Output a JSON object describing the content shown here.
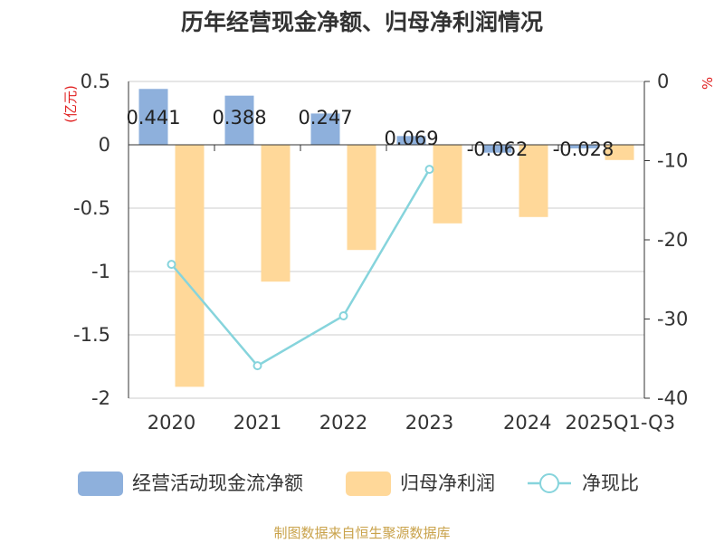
{
  "chart_data": {
    "type": "bar",
    "title": "历年经营现金净额、归母净利润情况",
    "categories": [
      "2020",
      "2021",
      "2022",
      "2023",
      "2024",
      "2025Q1-Q3"
    ],
    "left_unit": "(亿元)",
    "right_unit": "%",
    "left_axis": {
      "min": -2,
      "max": 0.5,
      "ticks": [
        "0.5",
        "0",
        "-0.5",
        "-1",
        "-1.5",
        "-2"
      ]
    },
    "right_axis": {
      "min": -40,
      "max": 0,
      "ticks": [
        "0",
        "-10",
        "-20",
        "-30",
        "-40"
      ]
    },
    "series": [
      {
        "name": "经营活动现金流净额",
        "type": "bar",
        "axis": "left",
        "values": [
          0.441,
          0.388,
          0.247,
          0.069,
          -0.062,
          -0.028
        ],
        "labels": [
          "0.441",
          "0.388",
          "0.247",
          "0.069",
          "-0.062",
          "-0.028"
        ]
      },
      {
        "name": "归母净利润",
        "type": "bar",
        "axis": "left",
        "values": [
          -1.91,
          -1.08,
          -0.83,
          -0.62,
          -0.57,
          -0.12
        ]
      },
      {
        "name": "净现比",
        "type": "line",
        "axis": "right",
        "values": [
          -23.1,
          -35.9,
          -29.6,
          -11.1,
          null,
          null
        ]
      }
    ],
    "colors": {
      "cash": "#8eb0dc",
      "profit": "#ffd899",
      "ratio": "#86d4dc",
      "grid": "#cccccc",
      "axis": "#333333"
    },
    "legend_position": "bottom",
    "grid": true
  },
  "source": "制图数据来自恒生聚源数据库"
}
